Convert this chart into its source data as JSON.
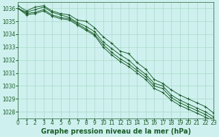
{
  "background_color": "#cef0ee",
  "plot_bg_color": "#cef0ee",
  "grid_color": "#a8d8c8",
  "line_color": "#1a5c28",
  "xlabel": "Graphe pression niveau de la mer (hPa)",
  "ylim": [
    1027.5,
    1036.5
  ],
  "xlim": [
    0,
    23
  ],
  "yticks": [
    1028,
    1029,
    1030,
    1031,
    1032,
    1033,
    1034,
    1035,
    1036
  ],
  "xticks": [
    0,
    1,
    2,
    3,
    4,
    5,
    6,
    7,
    8,
    9,
    10,
    11,
    12,
    13,
    14,
    15,
    16,
    17,
    18,
    19,
    20,
    21,
    22,
    23
  ],
  "line1": [
    1036.2,
    1035.8,
    1036.1,
    1036.2,
    1035.8,
    1035.6,
    1035.5,
    1035.1,
    1035.0,
    1034.5,
    1033.8,
    1033.3,
    1032.7,
    1032.5,
    1031.8,
    1031.3,
    1030.5,
    1030.2,
    1029.7,
    1029.3,
    1029.0,
    1028.7,
    1028.4,
    1027.9
  ],
  "line2": [
    1036.0,
    1035.7,
    1035.9,
    1036.1,
    1035.7,
    1035.5,
    1035.3,
    1034.9,
    1034.6,
    1034.2,
    1033.4,
    1032.9,
    1032.4,
    1032.0,
    1031.4,
    1030.9,
    1030.2,
    1030.0,
    1029.3,
    1028.9,
    1028.6,
    1028.3,
    1028.0,
    1027.6
  ],
  "line3": [
    1036.0,
    1035.6,
    1035.7,
    1035.9,
    1035.5,
    1035.3,
    1035.2,
    1034.8,
    1034.4,
    1034.0,
    1033.2,
    1032.6,
    1032.1,
    1031.7,
    1031.2,
    1030.7,
    1030.0,
    1029.8,
    1029.1,
    1028.7,
    1028.4,
    1028.1,
    1027.8,
    1027.4
  ],
  "line4": [
    1036.0,
    1035.5,
    1035.6,
    1035.8,
    1035.4,
    1035.2,
    1035.1,
    1034.7,
    1034.3,
    1033.9,
    1033.0,
    1032.4,
    1031.9,
    1031.5,
    1031.0,
    1030.5,
    1029.8,
    1029.5,
    1028.9,
    1028.5,
    1028.2,
    1027.9,
    1027.6,
    1027.3
  ],
  "tick_fontsize": 5.5,
  "xlabel_fontsize": 7.0,
  "xlabel_fontweight": "bold"
}
